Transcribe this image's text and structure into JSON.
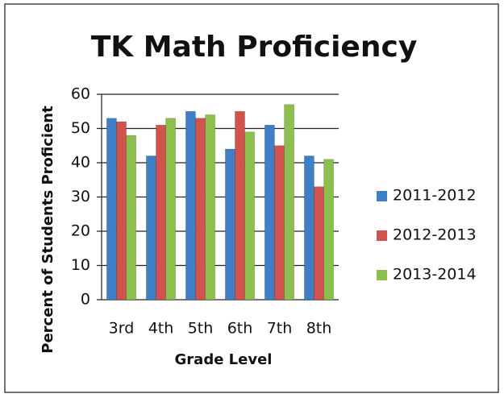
{
  "chart_data": {
    "type": "bar",
    "title": "TK Math Proficiency",
    "x_label": "Grade Level",
    "y_label": "Percent of Students Proficient",
    "categories": [
      "3rd",
      "4th",
      "5th",
      "6th",
      "7th",
      "8th"
    ],
    "series": [
      {
        "name": "2011-2012",
        "color": "#3f7fc6",
        "values": [
          53,
          42,
          55,
          44,
          51,
          42
        ]
      },
      {
        "name": "2012-2013",
        "color": "#d2534d",
        "values": [
          52,
          51,
          53,
          55,
          45,
          33
        ]
      },
      {
        "name": "2013-2014",
        "color": "#8dbf4e",
        "values": [
          48,
          53,
          54,
          49,
          57,
          41
        ]
      }
    ],
    "ylim": [
      0,
      60
    ],
    "yticks": [
      0,
      10,
      20,
      30,
      40,
      50,
      60
    ],
    "grid": true,
    "legend": "right"
  }
}
